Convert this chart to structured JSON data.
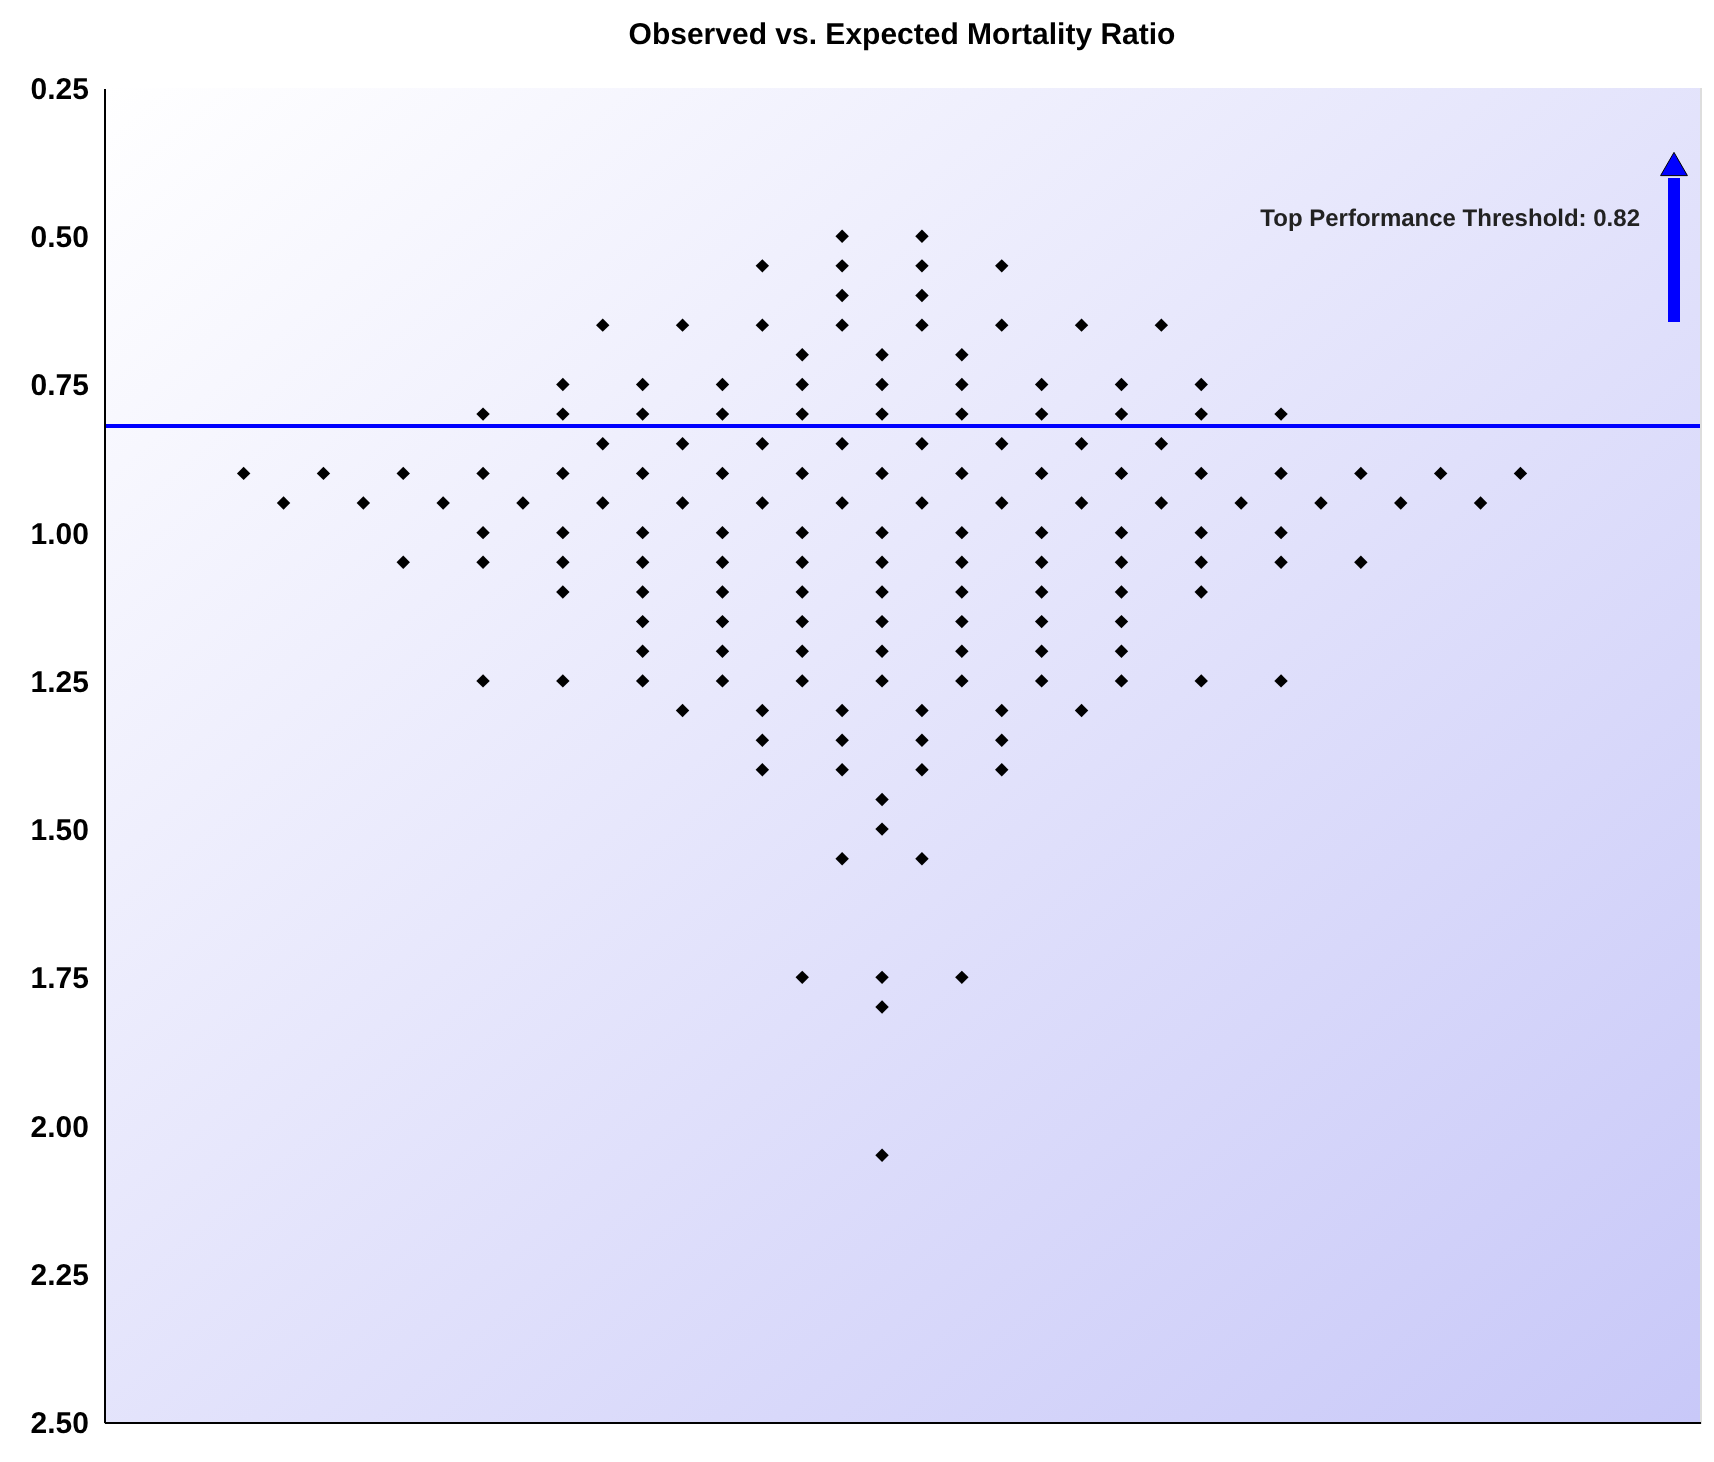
{
  "chart_data": {
    "type": "scatter",
    "title": "Observed vs. Expected Mortality Ratio",
    "categories": [
      null,
      null,
      null,
      null,
      null,
      null,
      null,
      null,
      null,
      null,
      null,
      null,
      null,
      null,
      null,
      null,
      null,
      null,
      null,
      null,
      null,
      null,
      null,
      null,
      null,
      null,
      null,
      null,
      null,
      null,
      null,
      null,
      null,
      null,
      null,
      null,
      null,
      null,
      null,
      null
    ],
    "series": [
      {
        "color": "#000000",
        "values": [
          null,
          null,
          null,
          0.9,
          0.95,
          0.9,
          0.95,
          0.9,
          0.95,
          0.8,
          0.95,
          0.75,
          0.65,
          0.75,
          0.65,
          0.75,
          0.55,
          0.7,
          0.5,
          0.7,
          0.5,
          0.7,
          0.55,
          0.75,
          0.65,
          0.75,
          0.65,
          0.75,
          0.95,
          0.8,
          0.95,
          0.9,
          0.95,
          0.9,
          0.95,
          0.9,
          null,
          null,
          null,
          null
        ]
      },
      {
        "color": "#000000",
        "values": [
          null,
          null,
          null,
          null,
          null,
          null,
          null,
          1.05,
          null,
          0.9,
          null,
          0.8,
          0.85,
          0.8,
          0.85,
          0.8,
          0.65,
          0.75,
          0.55,
          0.75,
          0.55,
          0.75,
          0.65,
          0.8,
          0.85,
          0.8,
          0.85,
          0.8,
          null,
          0.9,
          null,
          1.05,
          null,
          null,
          null,
          null,
          null,
          null,
          null,
          null
        ]
      },
      {
        "color": "#000000",
        "values": [
          null,
          null,
          null,
          null,
          null,
          null,
          null,
          null,
          null,
          1.0,
          null,
          0.9,
          0.95,
          0.9,
          0.95,
          0.9,
          0.85,
          0.8,
          0.6,
          0.8,
          0.6,
          0.8,
          0.85,
          0.9,
          0.95,
          0.9,
          0.95,
          0.9,
          null,
          1.0,
          null,
          null,
          null,
          null,
          null,
          null,
          null,
          null,
          null,
          null
        ]
      },
      {
        "color": "#000000",
        "values": [
          null,
          null,
          null,
          null,
          null,
          null,
          null,
          null,
          null,
          1.05,
          null,
          1.0,
          null,
          1.0,
          1.3,
          1.0,
          0.95,
          0.9,
          0.65,
          0.9,
          0.65,
          0.9,
          0.95,
          1.0,
          1.3,
          1.0,
          null,
          1.0,
          null,
          1.05,
          null,
          null,
          null,
          null,
          null,
          null,
          null,
          null,
          null,
          null
        ]
      },
      {
        "color": "#000000",
        "values": [
          null,
          null,
          null,
          null,
          null,
          null,
          null,
          null,
          null,
          1.25,
          null,
          1.05,
          null,
          1.05,
          null,
          1.05,
          1.3,
          1.0,
          0.85,
          1.0,
          0.85,
          1.0,
          1.3,
          1.05,
          null,
          1.05,
          null,
          1.05,
          null,
          1.25,
          null,
          null,
          null,
          null,
          null,
          null,
          null,
          null,
          null,
          null
        ]
      },
      {
        "color": "#000000",
        "values": [
          null,
          null,
          null,
          null,
          null,
          null,
          null,
          null,
          null,
          null,
          null,
          1.1,
          null,
          1.1,
          null,
          1.1,
          1.35,
          1.05,
          0.95,
          1.05,
          0.95,
          1.05,
          1.35,
          1.1,
          null,
          1.1,
          null,
          1.1,
          null,
          null,
          null,
          null,
          null,
          null,
          null,
          null,
          null,
          null,
          null,
          null
        ]
      },
      {
        "color": "#000000",
        "values": [
          null,
          null,
          null,
          null,
          null,
          null,
          null,
          null,
          null,
          null,
          null,
          1.25,
          null,
          1.15,
          null,
          1.15,
          1.4,
          1.1,
          1.3,
          1.1,
          1.3,
          1.1,
          1.4,
          1.15,
          null,
          1.15,
          null,
          1.25,
          null,
          null,
          null,
          null,
          null,
          null,
          null,
          null,
          null,
          null,
          null,
          null
        ]
      },
      {
        "color": "#000000",
        "values": [
          null,
          null,
          null,
          null,
          null,
          null,
          null,
          null,
          null,
          null,
          null,
          null,
          null,
          1.2,
          null,
          1.2,
          null,
          1.15,
          1.35,
          1.15,
          1.35,
          1.15,
          null,
          1.2,
          null,
          1.2,
          null,
          null,
          null,
          null,
          null,
          null,
          null,
          null,
          null,
          null,
          null,
          null,
          null,
          null
        ]
      },
      {
        "color": "#000000",
        "values": [
          null,
          null,
          null,
          null,
          null,
          null,
          null,
          null,
          null,
          null,
          null,
          null,
          null,
          1.25,
          null,
          1.25,
          null,
          1.2,
          1.4,
          1.2,
          1.4,
          1.2,
          null,
          1.25,
          null,
          1.25,
          null,
          null,
          null,
          null,
          null,
          null,
          null,
          null,
          null,
          null,
          null,
          null,
          null,
          null
        ]
      },
      {
        "color": "#000000",
        "values": [
          null,
          null,
          null,
          null,
          null,
          null,
          null,
          null,
          null,
          null,
          null,
          null,
          null,
          null,
          null,
          null,
          null,
          1.25,
          1.55,
          1.25,
          1.55,
          1.25,
          null,
          null,
          null,
          null,
          null,
          null,
          null,
          null,
          null,
          null,
          null,
          null,
          null,
          null,
          null,
          null,
          null,
          null
        ]
      },
      {
        "color": "#000000",
        "values": [
          null,
          null,
          null,
          null,
          null,
          null,
          null,
          null,
          null,
          null,
          null,
          null,
          null,
          null,
          null,
          null,
          null,
          1.75,
          null,
          1.45,
          null,
          1.75,
          null,
          null,
          null,
          null,
          null,
          null,
          null,
          null,
          null,
          null,
          null,
          null,
          null,
          null,
          null,
          null,
          null,
          null
        ]
      },
      {
        "color": "#000000",
        "values": [
          null,
          null,
          null,
          null,
          null,
          null,
          null,
          null,
          null,
          null,
          null,
          null,
          null,
          null,
          null,
          null,
          null,
          null,
          null,
          1.5,
          null,
          null,
          null,
          null,
          null,
          null,
          null,
          null,
          null,
          null,
          null,
          null,
          null,
          null,
          null,
          null,
          null,
          null,
          null,
          null
        ]
      },
      {
        "color": "#000000",
        "values": [
          null,
          null,
          null,
          null,
          null,
          null,
          null,
          null,
          null,
          null,
          null,
          null,
          null,
          null,
          null,
          null,
          null,
          null,
          null,
          1.75,
          null,
          null,
          null,
          null,
          null,
          null,
          null,
          null,
          null,
          null,
          null,
          null,
          null,
          null,
          null,
          null,
          null,
          null,
          null,
          null
        ]
      },
      {
        "color": "#000000",
        "values": [
          null,
          null,
          null,
          null,
          null,
          null,
          null,
          null,
          null,
          null,
          null,
          null,
          null,
          null,
          null,
          null,
          null,
          null,
          null,
          1.8,
          null,
          null,
          null,
          null,
          null,
          null,
          null,
          null,
          null,
          null,
          null,
          null,
          null,
          null,
          null,
          null,
          null,
          null,
          null,
          null
        ]
      },
      {
        "color": "#000000",
        "values": [
          null,
          null,
          null,
          null,
          null,
          null,
          null,
          null,
          null,
          null,
          null,
          null,
          null,
          null,
          null,
          null,
          null,
          null,
          null,
          2.05,
          null,
          null,
          null,
          null,
          null,
          null,
          null,
          null,
          null,
          null,
          null,
          null,
          null,
          null,
          null,
          null,
          null,
          null,
          null,
          null
        ]
      }
    ],
    "ylim": [
      2.5,
      0.25
    ],
    "yticks": [
      {
        "value": 0.25,
        "label": "0.25"
      },
      {
        "value": 0.5,
        "label": "0.50"
      },
      {
        "value": 0.75,
        "label": "0.75"
      },
      {
        "value": 1.0,
        "label": "1.00"
      },
      {
        "value": 1.25,
        "label": "1.25"
      },
      {
        "value": 1.5,
        "label": "1.50"
      },
      {
        "value": 1.75,
        "label": "1.75"
      },
      {
        "value": 2.0,
        "label": "2.00"
      },
      {
        "value": 2.25,
        "label": "2.25"
      },
      {
        "value": 2.5,
        "label": "2.50"
      }
    ],
    "ref_lines": [
      {
        "axis": "y",
        "value": 0.82,
        "color": "#0000ff",
        "line_style": "solid"
      }
    ],
    "annotations": [
      "Top Performance Threshold: 0.82"
    ],
    "marker": "diamond",
    "legend": false,
    "tick_labels": "y"
  }
}
